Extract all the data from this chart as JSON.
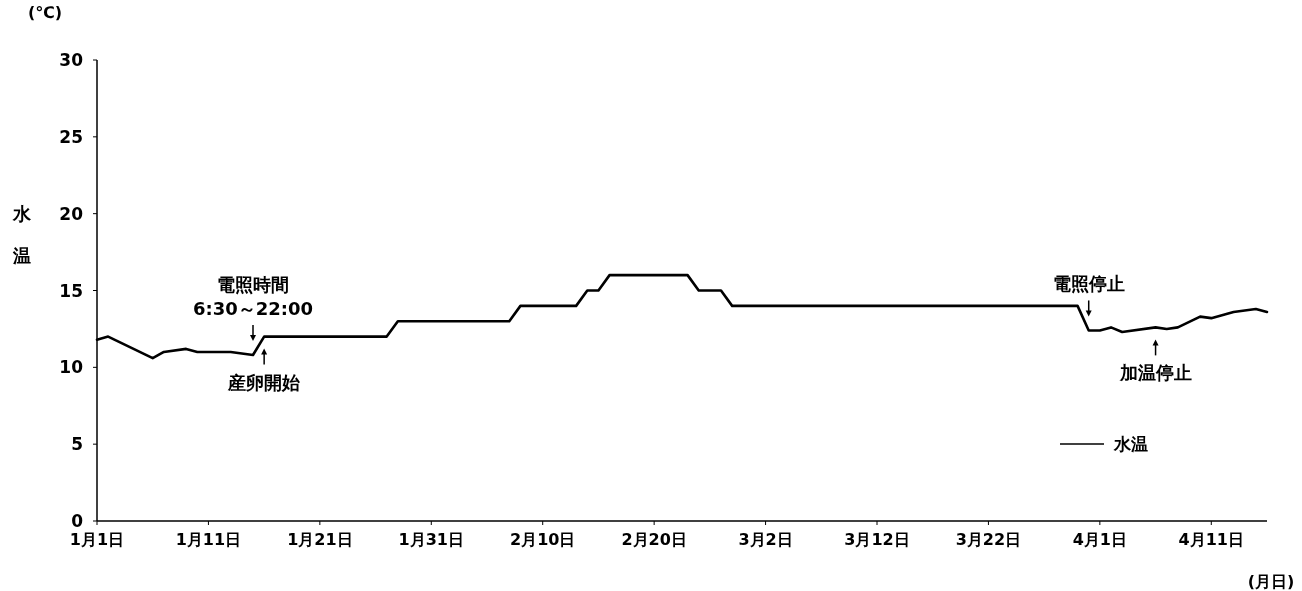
{
  "chart_data": {
    "type": "line",
    "xlabel": "(月日)",
    "ylabel": "水温",
    "x": [
      "--01-01",
      "--01-02",
      "--01-06",
      "--01-07",
      "--01-09",
      "--01-10",
      "--01-13",
      "--01-15",
      "--01-16",
      "--01-27",
      "--01-28",
      "--02-07",
      "--02-08",
      "--02-13",
      "--02-14",
      "--02-15",
      "--02-16",
      "--02-23",
      "--02-24",
      "--02-26",
      "--02-27",
      "--03-30",
      "--03-31",
      "--04-01",
      "--04-02",
      "--04-03",
      "--04-06",
      "--04-07",
      "--04-08",
      "--04-10",
      "--04-11",
      "--04-13",
      "--04-15",
      "--04-16"
    ],
    "series": [
      {
        "name": "水温",
        "color": "#000000",
        "values": [
          11.8,
          12.0,
          10.6,
          11.0,
          11.2,
          11.0,
          11.0,
          10.8,
          12.0,
          12.0,
          13.0,
          13.0,
          14.0,
          14.0,
          15.0,
          15.0,
          16.0,
          16.0,
          15.0,
          15.0,
          14.0,
          14.0,
          12.4,
          12.4,
          12.6,
          12.3,
          12.6,
          12.5,
          12.6,
          13.3,
          13.2,
          13.6,
          13.8,
          13.6
        ]
      }
    ],
    "xlim": [
      "--01-01",
      "--04-16"
    ],
    "xticks": [
      {
        "value": "--01-01",
        "label": "1月1日"
      },
      {
        "value": "--01-11",
        "label": "1月11日"
      },
      {
        "value": "--01-21",
        "label": "1月21日"
      },
      {
        "value": "--01-31",
        "label": "1月31日"
      },
      {
        "value": "--02-10",
        "label": "2月10日"
      },
      {
        "value": "--02-20",
        "label": "2月20日"
      },
      {
        "value": "--03-02",
        "label": "3月2日"
      },
      {
        "value": "--03-12",
        "label": "3月12日"
      },
      {
        "value": "--03-22",
        "label": "3月22日"
      },
      {
        "value": "--04-01",
        "label": "4月1日"
      },
      {
        "value": "--04-11",
        "label": "4月11日"
      }
    ],
    "ylim": [
      0,
      30
    ],
    "yticks": [
      0,
      5,
      10,
      15,
      20,
      25,
      30
    ],
    "grid": false,
    "legend": "bottom right",
    "marker": "none",
    "line_style": "solid",
    "annotations": [
      "(℃)",
      {
        "text": "電照時間\n6:30～22:00",
        "x": "--01-15",
        "y": 10.8
      },
      {
        "text": "産卵開始",
        "x": "--01-16",
        "y": 12.0
      },
      {
        "text": "電照停止",
        "x": "--03-31",
        "y": 12.4
      },
      {
        "text": "加温停止",
        "x": "--04-06",
        "y": 12.6
      }
    ]
  }
}
